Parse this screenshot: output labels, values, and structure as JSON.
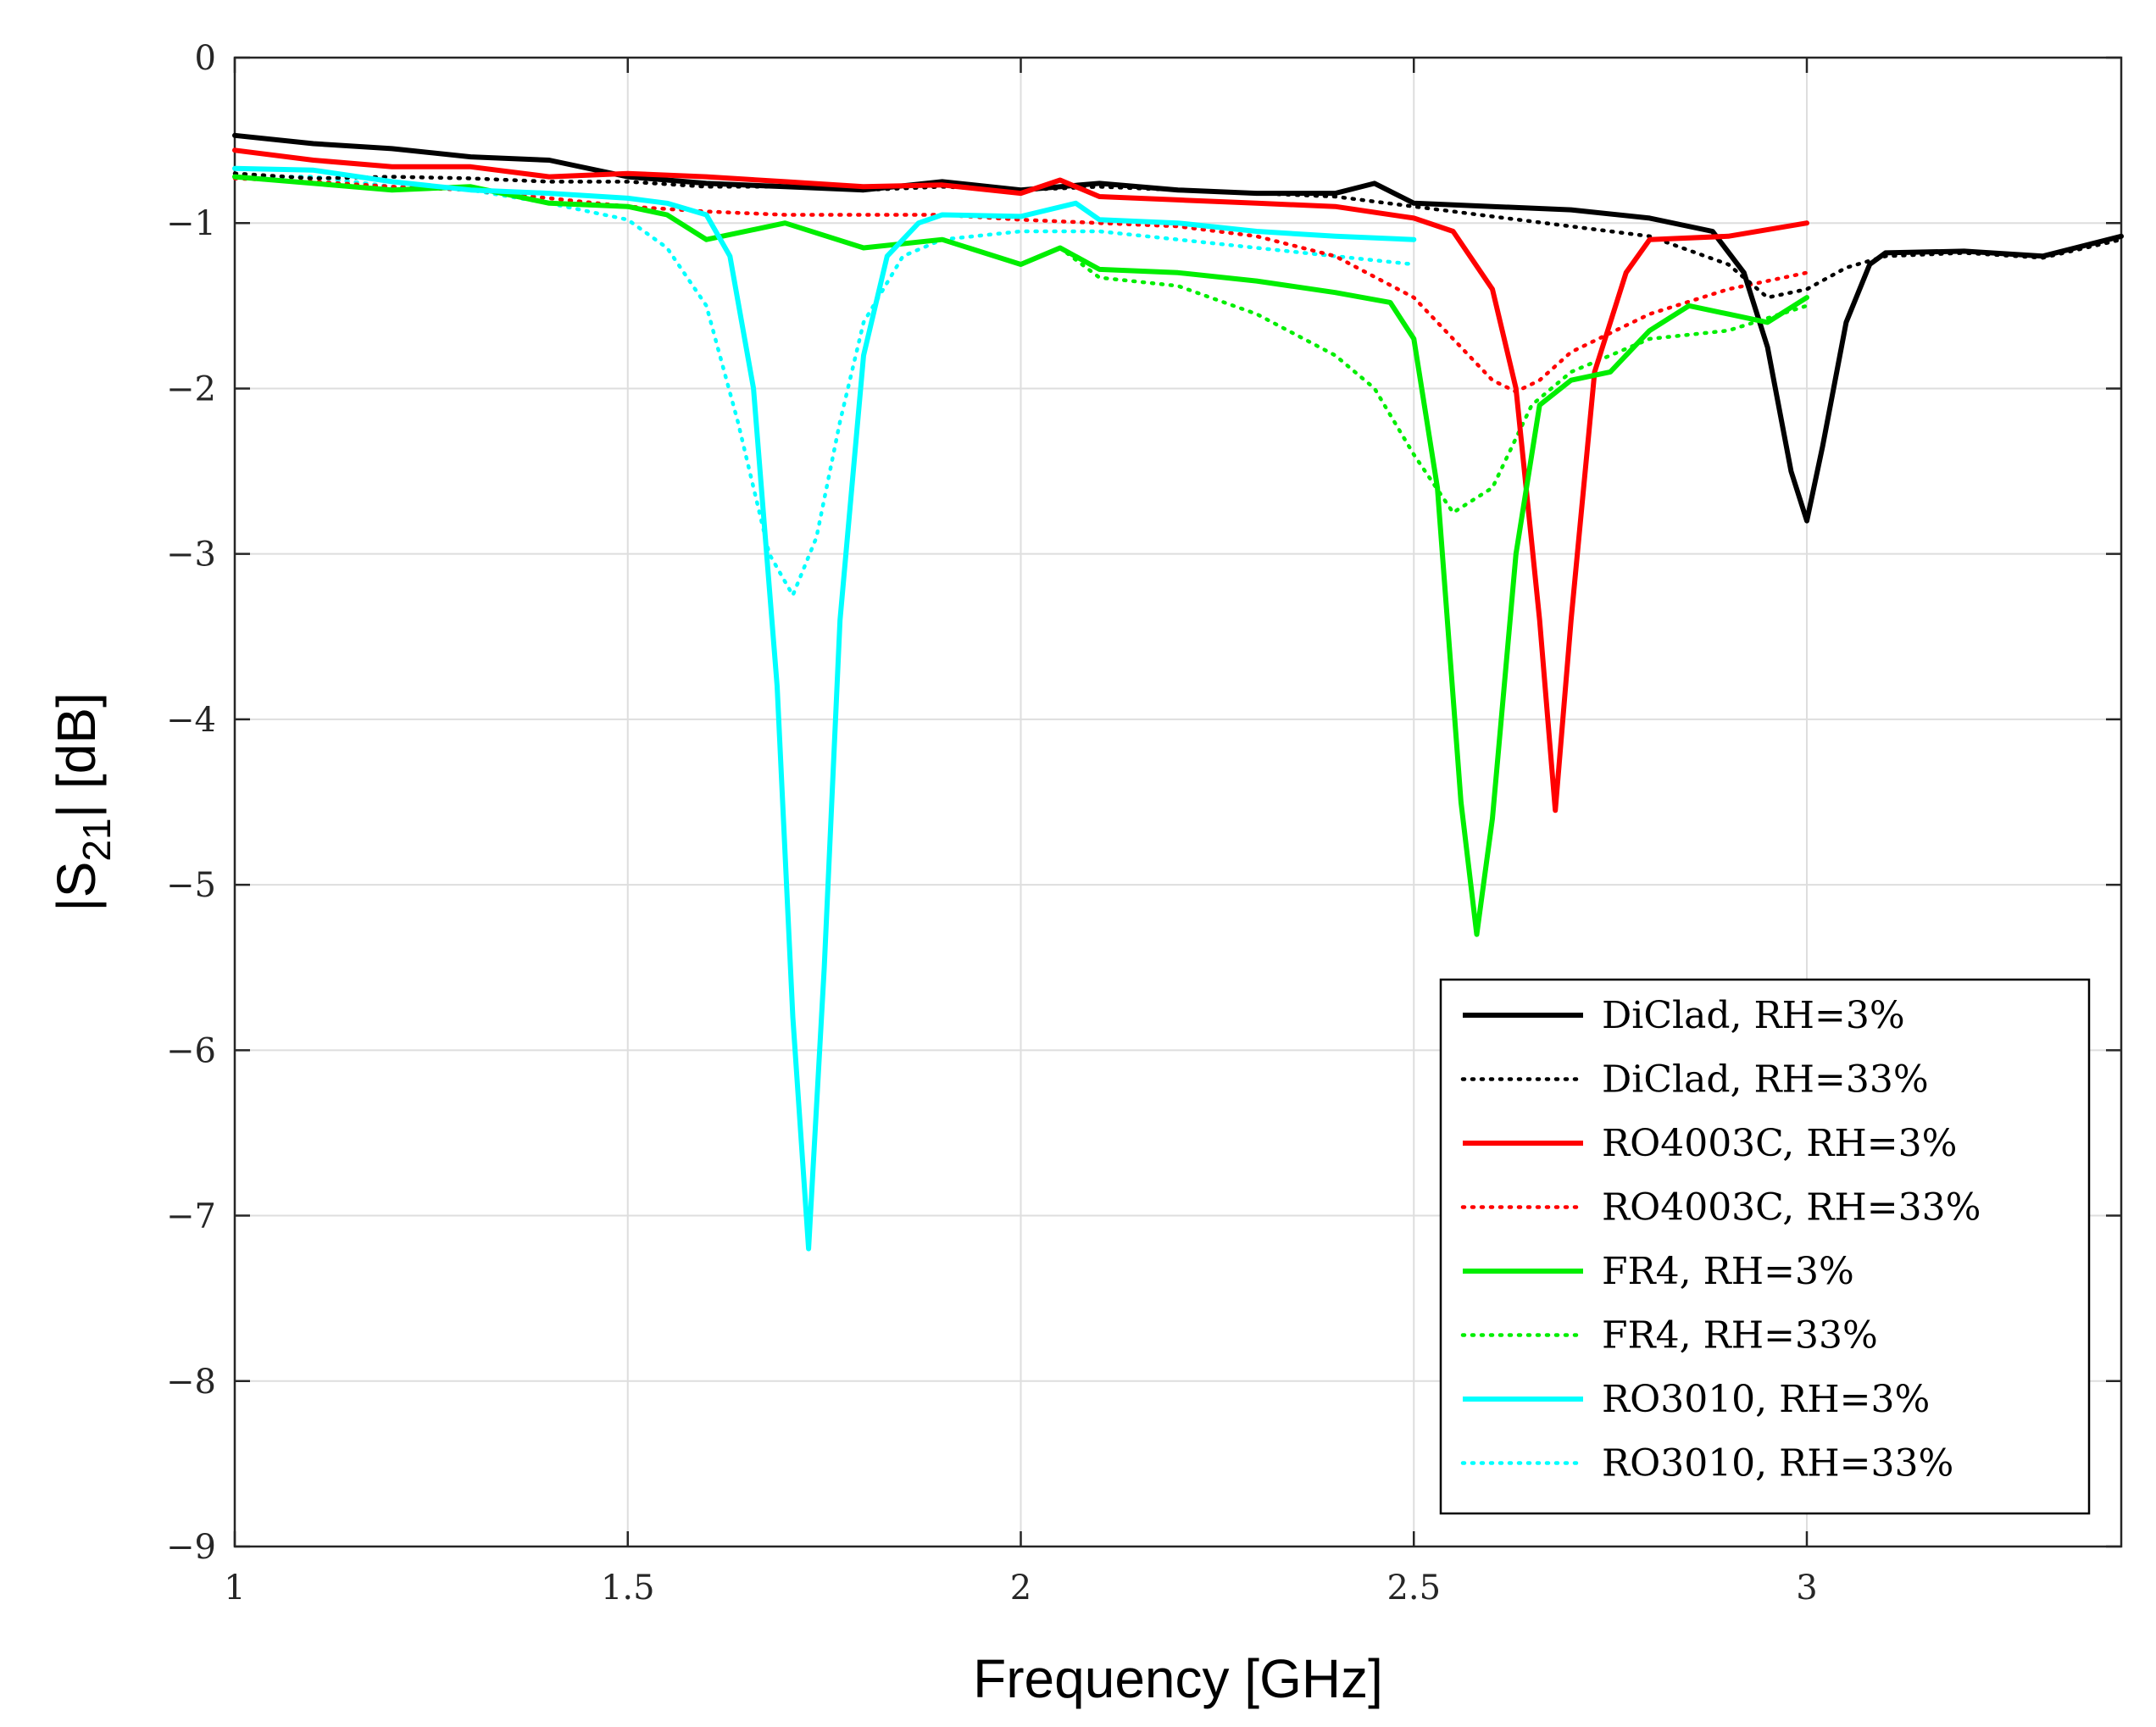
{
  "chart_data": {
    "type": "line",
    "title": "",
    "xlabel": "Frequency [GHz]",
    "ylabel": "|S21| [dB]",
    "ylabel_parts": {
      "pre": "|S",
      "sub": "21",
      "post": "| [dB]"
    },
    "xlim": [
      1,
      3.4
    ],
    "ylim": [
      -9,
      0
    ],
    "xticks": [
      1,
      1.5,
      2,
      2.5,
      3
    ],
    "xtick_labels": [
      "1",
      "1.5",
      "2",
      "2.5",
      "3"
    ],
    "yticks": [
      0,
      -1,
      -2,
      -3,
      -4,
      -5,
      -6,
      -7,
      -8,
      -9
    ],
    "ytick_labels": [
      "0",
      "−1",
      "−2",
      "−3",
      "−4",
      "−5",
      "−6",
      "−7",
      "−8",
      "−9"
    ],
    "grid": true,
    "legend_position": "bottom-right",
    "series": [
      {
        "name": "DiClad, RH=3%",
        "color": "#000000",
        "style": "solid",
        "points": [
          [
            1,
            -0.47
          ],
          [
            1.1,
            -0.52
          ],
          [
            1.2,
            -0.55
          ],
          [
            1.3,
            -0.6
          ],
          [
            1.4,
            -0.62
          ],
          [
            1.5,
            -0.72
          ],
          [
            1.6,
            -0.76
          ],
          [
            1.7,
            -0.78
          ],
          [
            1.8,
            -0.8
          ],
          [
            1.9,
            -0.75
          ],
          [
            2,
            -0.8
          ],
          [
            2.1,
            -0.76
          ],
          [
            2.2,
            -0.8
          ],
          [
            2.3,
            -0.82
          ],
          [
            2.4,
            -0.82
          ],
          [
            2.45,
            -0.76
          ],
          [
            2.5,
            -0.88
          ],
          [
            2.6,
            -0.9
          ],
          [
            2.7,
            -0.92
          ],
          [
            2.8,
            -0.97
          ],
          [
            2.88,
            -1.05
          ],
          [
            2.92,
            -1.3
          ],
          [
            2.95,
            -1.75
          ],
          [
            2.98,
            -2.5
          ],
          [
            3.0,
            -2.8
          ],
          [
            3.02,
            -2.35
          ],
          [
            3.05,
            -1.6
          ],
          [
            3.08,
            -1.25
          ],
          [
            3.1,
            -1.18
          ],
          [
            3.2,
            -1.17
          ],
          [
            3.3,
            -1.2
          ],
          [
            3.4,
            -1.08
          ]
        ]
      },
      {
        "name": "DiClad, RH=33%",
        "color": "#000000",
        "style": "dotted",
        "points": [
          [
            1,
            -0.7
          ],
          [
            1.1,
            -0.73
          ],
          [
            1.2,
            -0.72
          ],
          [
            1.3,
            -0.73
          ],
          [
            1.4,
            -0.75
          ],
          [
            1.5,
            -0.75
          ],
          [
            1.6,
            -0.78
          ],
          [
            1.7,
            -0.78
          ],
          [
            1.8,
            -0.8
          ],
          [
            1.9,
            -0.78
          ],
          [
            2,
            -0.8
          ],
          [
            2.1,
            -0.78
          ],
          [
            2.2,
            -0.8
          ],
          [
            2.3,
            -0.82
          ],
          [
            2.4,
            -0.84
          ],
          [
            2.5,
            -0.9
          ],
          [
            2.6,
            -0.96
          ],
          [
            2.7,
            -1.02
          ],
          [
            2.8,
            -1.08
          ],
          [
            2.9,
            -1.25
          ],
          [
            2.95,
            -1.45
          ],
          [
            3.0,
            -1.4
          ],
          [
            3.05,
            -1.27
          ],
          [
            3.1,
            -1.2
          ],
          [
            3.2,
            -1.18
          ],
          [
            3.3,
            -1.21
          ],
          [
            3.4,
            -1.1
          ]
        ]
      },
      {
        "name": "RO4003C, RH=3%",
        "color": "#ff0000",
        "style": "solid",
        "points": [
          [
            1,
            -0.56
          ],
          [
            1.1,
            -0.62
          ],
          [
            1.2,
            -0.66
          ],
          [
            1.3,
            -0.66
          ],
          [
            1.4,
            -0.72
          ],
          [
            1.5,
            -0.7
          ],
          [
            1.6,
            -0.72
          ],
          [
            1.7,
            -0.75
          ],
          [
            1.8,
            -0.78
          ],
          [
            1.9,
            -0.77
          ],
          [
            2,
            -0.82
          ],
          [
            2.05,
            -0.74
          ],
          [
            2.1,
            -0.84
          ],
          [
            2.2,
            -0.86
          ],
          [
            2.3,
            -0.88
          ],
          [
            2.4,
            -0.9
          ],
          [
            2.5,
            -0.97
          ],
          [
            2.55,
            -1.05
          ],
          [
            2.6,
            -1.4
          ],
          [
            2.63,
            -2.0
          ],
          [
            2.66,
            -3.4
          ],
          [
            2.68,
            -4.55
          ],
          [
            2.7,
            -3.4
          ],
          [
            2.73,
            -1.9
          ],
          [
            2.77,
            -1.3
          ],
          [
            2.8,
            -1.1
          ],
          [
            2.9,
            -1.08
          ],
          [
            3.0,
            -1.0
          ]
        ]
      },
      {
        "name": "RO4003C, RH=33%",
        "color": "#ff0000",
        "style": "dotted",
        "points": [
          [
            1,
            -0.73
          ],
          [
            1.1,
            -0.75
          ],
          [
            1.2,
            -0.78
          ],
          [
            1.3,
            -0.8
          ],
          [
            1.4,
            -0.85
          ],
          [
            1.5,
            -0.9
          ],
          [
            1.6,
            -0.93
          ],
          [
            1.7,
            -0.95
          ],
          [
            1.8,
            -0.95
          ],
          [
            1.9,
            -0.95
          ],
          [
            2,
            -0.98
          ],
          [
            2.1,
            -1.0
          ],
          [
            2.2,
            -1.02
          ],
          [
            2.3,
            -1.08
          ],
          [
            2.4,
            -1.2
          ],
          [
            2.5,
            -1.45
          ],
          [
            2.55,
            -1.7
          ],
          [
            2.6,
            -1.95
          ],
          [
            2.63,
            -2.02
          ],
          [
            2.66,
            -1.95
          ],
          [
            2.7,
            -1.78
          ],
          [
            2.8,
            -1.55
          ],
          [
            2.9,
            -1.4
          ],
          [
            3.0,
            -1.3
          ]
        ]
      },
      {
        "name": "FR4, RH=3%",
        "color": "#00ee00",
        "style": "solid",
        "points": [
          [
            1,
            -0.72
          ],
          [
            1.1,
            -0.76
          ],
          [
            1.2,
            -0.8
          ],
          [
            1.3,
            -0.78
          ],
          [
            1.4,
            -0.88
          ],
          [
            1.5,
            -0.9
          ],
          [
            1.55,
            -0.95
          ],
          [
            1.6,
            -1.1
          ],
          [
            1.7,
            -1.0
          ],
          [
            1.8,
            -1.15
          ],
          [
            1.9,
            -1.1
          ],
          [
            2,
            -1.25
          ],
          [
            2.05,
            -1.15
          ],
          [
            2.1,
            -1.28
          ],
          [
            2.2,
            -1.3
          ],
          [
            2.3,
            -1.35
          ],
          [
            2.4,
            -1.42
          ],
          [
            2.47,
            -1.48
          ],
          [
            2.5,
            -1.7
          ],
          [
            2.53,
            -2.6
          ],
          [
            2.56,
            -4.5
          ],
          [
            2.58,
            -5.3
          ],
          [
            2.6,
            -4.6
          ],
          [
            2.63,
            -3.0
          ],
          [
            2.66,
            -2.1
          ],
          [
            2.7,
            -1.95
          ],
          [
            2.75,
            -1.9
          ],
          [
            2.8,
            -1.65
          ],
          [
            2.85,
            -1.5
          ],
          [
            2.9,
            -1.55
          ],
          [
            2.95,
            -1.6
          ],
          [
            3.0,
            -1.45
          ]
        ]
      },
      {
        "name": "FR4, RH=33%",
        "color": "#00ee00",
        "style": "dotted",
        "points": [
          [
            1,
            -0.72
          ],
          [
            1.1,
            -0.76
          ],
          [
            1.2,
            -0.8
          ],
          [
            1.3,
            -0.78
          ],
          [
            1.4,
            -0.88
          ],
          [
            1.5,
            -0.9
          ],
          [
            1.55,
            -0.95
          ],
          [
            1.6,
            -1.1
          ],
          [
            1.7,
            -1.0
          ],
          [
            1.8,
            -1.15
          ],
          [
            1.9,
            -1.1
          ],
          [
            2,
            -1.25
          ],
          [
            2.05,
            -1.15
          ],
          [
            2.1,
            -1.33
          ],
          [
            2.2,
            -1.38
          ],
          [
            2.3,
            -1.55
          ],
          [
            2.4,
            -1.8
          ],
          [
            2.45,
            -2.0
          ],
          [
            2.5,
            -2.4
          ],
          [
            2.55,
            -2.75
          ],
          [
            2.6,
            -2.6
          ],
          [
            2.65,
            -2.1
          ],
          [
            2.7,
            -1.9
          ],
          [
            2.8,
            -1.7
          ],
          [
            2.9,
            -1.65
          ],
          [
            3.0,
            -1.5
          ]
        ]
      },
      {
        "name": "RO3010, RH=3%",
        "color": "#00ffff",
        "style": "solid",
        "points": [
          [
            1,
            -0.67
          ],
          [
            1.1,
            -0.68
          ],
          [
            1.2,
            -0.75
          ],
          [
            1.3,
            -0.8
          ],
          [
            1.4,
            -0.82
          ],
          [
            1.5,
            -0.85
          ],
          [
            1.55,
            -0.88
          ],
          [
            1.6,
            -0.95
          ],
          [
            1.63,
            -1.2
          ],
          [
            1.66,
            -2.0
          ],
          [
            1.69,
            -3.8
          ],
          [
            1.71,
            -5.8
          ],
          [
            1.73,
            -7.2
          ],
          [
            1.75,
            -5.5
          ],
          [
            1.77,
            -3.4
          ],
          [
            1.8,
            -1.8
          ],
          [
            1.83,
            -1.2
          ],
          [
            1.87,
            -1.0
          ],
          [
            1.9,
            -0.95
          ],
          [
            2,
            -0.96
          ],
          [
            2.07,
            -0.88
          ],
          [
            2.1,
            -0.98
          ],
          [
            2.2,
            -1.0
          ],
          [
            2.3,
            -1.05
          ],
          [
            2.4,
            -1.08
          ],
          [
            2.5,
            -1.1
          ]
        ]
      },
      {
        "name": "RO3010, RH=33%",
        "color": "#00ffff",
        "style": "dotted",
        "points": [
          [
            1,
            -0.72
          ],
          [
            1.1,
            -0.72
          ],
          [
            1.2,
            -0.78
          ],
          [
            1.3,
            -0.8
          ],
          [
            1.4,
            -0.88
          ],
          [
            1.5,
            -0.98
          ],
          [
            1.55,
            -1.15
          ],
          [
            1.6,
            -1.5
          ],
          [
            1.64,
            -2.2
          ],
          [
            1.68,
            -3.0
          ],
          [
            1.71,
            -3.25
          ],
          [
            1.74,
            -2.9
          ],
          [
            1.77,
            -2.2
          ],
          [
            1.8,
            -1.6
          ],
          [
            1.85,
            -1.2
          ],
          [
            1.9,
            -1.1
          ],
          [
            2,
            -1.05
          ],
          [
            2.1,
            -1.05
          ],
          [
            2.2,
            -1.1
          ],
          [
            2.3,
            -1.15
          ],
          [
            2.4,
            -1.2
          ],
          [
            2.5,
            -1.25
          ]
        ]
      }
    ]
  }
}
